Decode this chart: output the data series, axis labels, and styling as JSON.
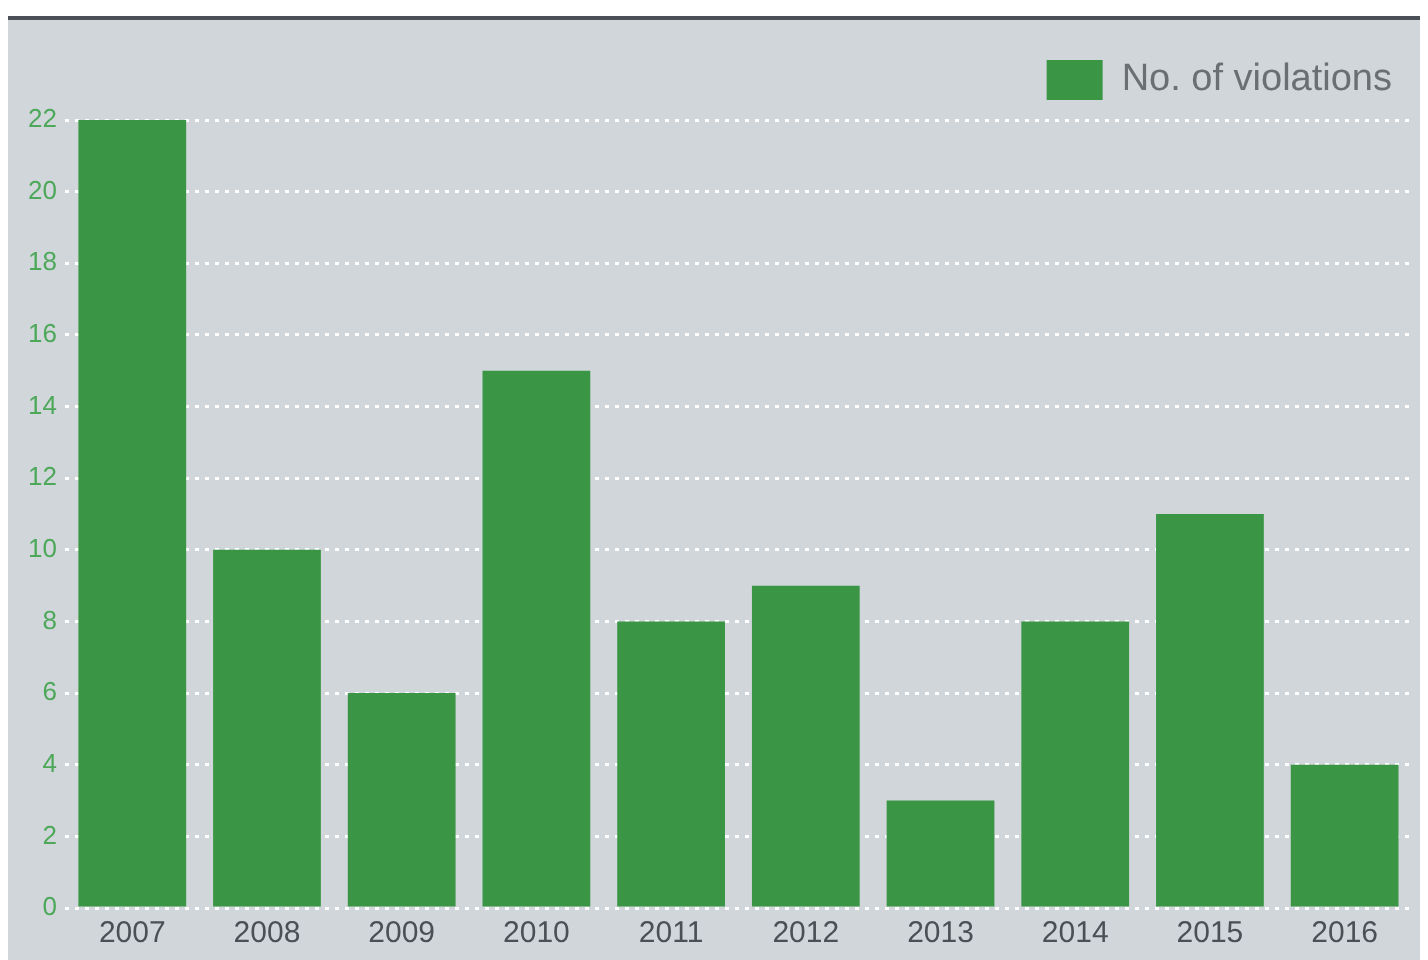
{
  "chart_data": {
    "type": "bar",
    "categories": [
      "2007",
      "2008",
      "2009",
      "2010",
      "2011",
      "2012",
      "2013",
      "2014",
      "2015",
      "2016"
    ],
    "series": [
      {
        "name": "No. of violations",
        "color": "#3a9645",
        "values": [
          22,
          10,
          6,
          15,
          8,
          9,
          3,
          8,
          11,
          4
        ]
      }
    ],
    "ylim": [
      0,
      22
    ],
    "yticks": [
      0,
      2,
      4,
      6,
      8,
      10,
      12,
      14,
      16,
      18,
      20,
      22
    ],
    "grid": "y",
    "legend": "top right"
  }
}
